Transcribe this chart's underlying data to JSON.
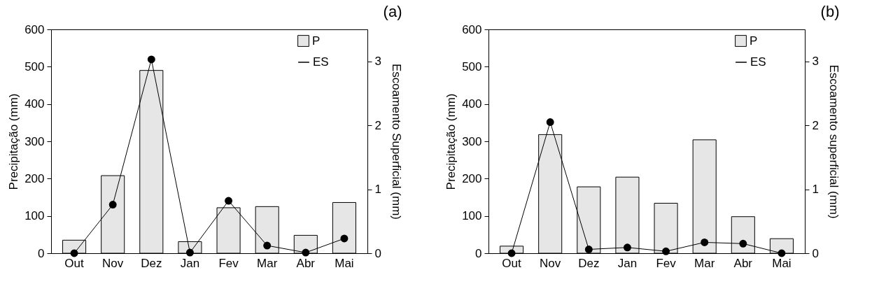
{
  "chart_data": [
    {
      "type": "bar",
      "title": "(a)",
      "categories": [
        "Out",
        "Nov",
        "Dez",
        "Jan",
        "Fev",
        "Mar",
        "Abr",
        "Mai"
      ],
      "ylabel": "Precipitação (mm)",
      "y2label": "Escoamento Superficial (mm)",
      "ylim": [
        0,
        600
      ],
      "yticks": [
        0,
        100,
        200,
        300,
        400,
        500,
        600
      ],
      "y2lim": [
        0,
        3.5
      ],
      "y2ticks": [
        0,
        1,
        2,
        3
      ],
      "legend": "top right",
      "grid": false,
      "series": [
        {
          "name": "P",
          "type": "bar",
          "color": "#e6e6e6",
          "values": [
            35,
            208,
            490,
            31,
            122,
            125,
            48,
            136
          ]
        },
        {
          "name": "ES",
          "type": "line",
          "axis": "y2",
          "color": "#000000",
          "marker": "circle",
          "values": [
            0,
            0.76,
            3.03,
            0.01,
            0.82,
            0.12,
            0.01,
            0.23
          ]
        }
      ]
    },
    {
      "type": "bar",
      "title": "(b)",
      "categories": [
        "Out",
        "Nov",
        "Dez",
        "Jan",
        "Fev",
        "Mar",
        "Abr",
        "Mai"
      ],
      "ylabel": "Precipitação (mm)",
      "y2label": "Escoamento superficial (mm)",
      "ylim": [
        0,
        600
      ],
      "yticks": [
        0,
        100,
        200,
        300,
        400,
        500,
        600
      ],
      "y2lim": [
        0,
        3.5
      ],
      "y2ticks": [
        0,
        1,
        2,
        3
      ],
      "legend": "top right",
      "grid": false,
      "series": [
        {
          "name": "P",
          "type": "bar",
          "color": "#e6e6e6",
          "values": [
            19,
            318,
            178,
            204,
            134,
            304,
            98,
            39
          ]
        },
        {
          "name": "ES",
          "type": "line",
          "axis": "y2",
          "color": "#000000",
          "marker": "circle",
          "values": [
            0,
            2.05,
            0.06,
            0.09,
            0.03,
            0.17,
            0.15,
            0
          ]
        }
      ]
    }
  ]
}
